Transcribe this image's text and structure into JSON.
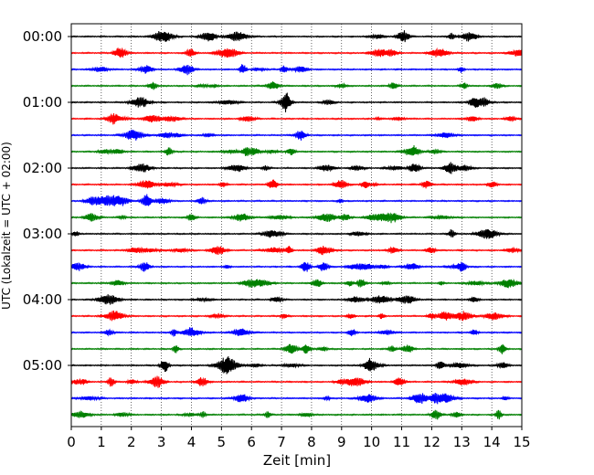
{
  "chart_data": {
    "type": "line",
    "title": "",
    "xlabel": "Zeit  [min]",
    "ylabel": "UTC (Lokalzeit = UTC + 02:00)",
    "xlim": [
      0,
      15
    ],
    "x_ticks": [
      0,
      1,
      2,
      3,
      4,
      5,
      6,
      7,
      8,
      9,
      10,
      11,
      12,
      13,
      14,
      15
    ],
    "x_tick_labels": [
      "0",
      "1",
      "2",
      "3",
      "4",
      "5",
      "6",
      "7",
      "8",
      "9",
      "10",
      "11",
      "12",
      "13",
      "14",
      "15"
    ],
    "y_ticks": [
      "00:00",
      "01:00",
      "02:00",
      "03:00",
      "04:00",
      "05:00"
    ],
    "grid": "vertical dotted",
    "series_colors": [
      "#000000",
      "#ff0000",
      "#0000ff",
      "#008000"
    ],
    "rows": [
      {
        "start": "00:00",
        "color": "#000000"
      },
      {
        "start": "00:15",
        "color": "#ff0000"
      },
      {
        "start": "00:30",
        "color": "#0000ff"
      },
      {
        "start": "00:45",
        "color": "#008000"
      },
      {
        "start": "01:00",
        "color": "#000000"
      },
      {
        "start": "01:15",
        "color": "#ff0000"
      },
      {
        "start": "01:30",
        "color": "#0000ff"
      },
      {
        "start": "01:45",
        "color": "#008000"
      },
      {
        "start": "02:00",
        "color": "#000000"
      },
      {
        "start": "02:15",
        "color": "#ff0000"
      },
      {
        "start": "02:30",
        "color": "#0000ff"
      },
      {
        "start": "02:45",
        "color": "#008000"
      },
      {
        "start": "03:00",
        "color": "#000000"
      },
      {
        "start": "03:15",
        "color": "#ff0000"
      },
      {
        "start": "03:30",
        "color": "#0000ff"
      },
      {
        "start": "03:45",
        "color": "#008000"
      },
      {
        "start": "04:00",
        "color": "#000000"
      },
      {
        "start": "04:15",
        "color": "#ff0000"
      },
      {
        "start": "04:30",
        "color": "#0000ff"
      },
      {
        "start": "04:45",
        "color": "#008000"
      },
      {
        "start": "05:00",
        "color": "#000000"
      },
      {
        "start": "05:15",
        "color": "#ff0000"
      },
      {
        "start": "05:30",
        "color": "#0000ff"
      },
      {
        "start": "05:45",
        "color": "#008000"
      }
    ]
  }
}
